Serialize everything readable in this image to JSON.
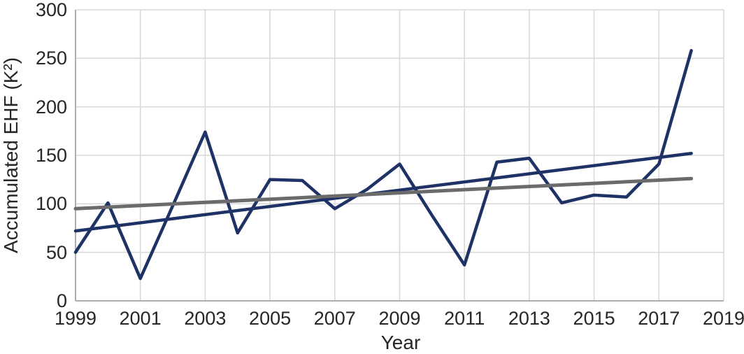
{
  "chart_data": {
    "type": "line",
    "title": "",
    "xlabel": "Year",
    "ylabel": "Accumulated EHF (K²)",
    "xlim": [
      1999,
      2019
    ],
    "ylim": [
      0,
      300
    ],
    "x_ticks": [
      1999,
      2001,
      2003,
      2005,
      2007,
      2009,
      2011,
      2013,
      2015,
      2017,
      2019
    ],
    "y_ticks": [
      0,
      50,
      100,
      150,
      200,
      250,
      300
    ],
    "grid": true,
    "legend": "none",
    "series": [
      {
        "name": "annual-accumulated-ehf",
        "color": "#1f3265",
        "stroke_width": 4.5,
        "x": [
          1999,
          2000,
          2001,
          2002,
          2003,
          2004,
          2005,
          2006,
          2007,
          2008,
          2009,
          2010,
          2011,
          2012,
          2013,
          2014,
          2015,
          2016,
          2017,
          2018
        ],
        "values": [
          50,
          101,
          23,
          98,
          174,
          70,
          125,
          124,
          95,
          115,
          141,
          88,
          37,
          143,
          147,
          101,
          109,
          107,
          141,
          258
        ]
      },
      {
        "name": "linear-trend",
        "color": "#1f3265",
        "stroke_width": 4.5,
        "x": [
          1999,
          2018
        ],
        "values": [
          72,
          152
        ]
      },
      {
        "name": "gray-baseline",
        "color": "#6b6b6b",
        "stroke_width": 5,
        "x": [
          1999,
          2018
        ],
        "values": [
          95,
          126
        ]
      }
    ]
  },
  "colors": {
    "gridline": "#d9d9d9",
    "axis_frame": "#aeaeae",
    "text": "#262626",
    "background": "#ffffff",
    "navy": "#1f3265",
    "gray": "#6b6b6b"
  }
}
